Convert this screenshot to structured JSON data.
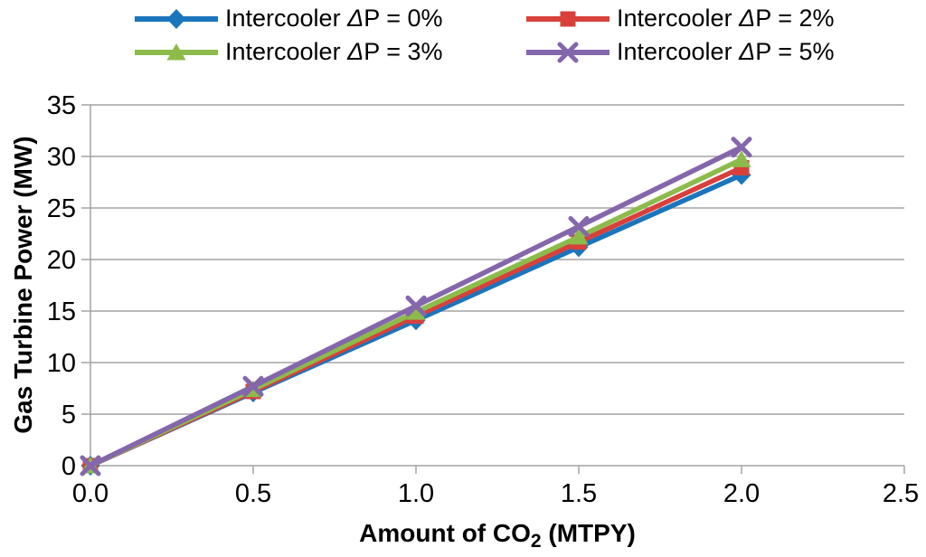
{
  "legend": {
    "items": [
      {
        "prefix": "Intercooler ",
        "delta": "Δ",
        "rest": "P = 0%",
        "marker": "diamond",
        "color": "#1B75BC"
      },
      {
        "prefix": "Intercooler ",
        "delta": "Δ",
        "rest": "P = 2%",
        "marker": "square",
        "color": "#D8403C"
      },
      {
        "prefix": "Intercooler ",
        "delta": "Δ",
        "rest": "P = 3%",
        "marker": "triangle",
        "color": "#8CBB4B"
      },
      {
        "prefix": "Intercooler ",
        "delta": "Δ",
        "rest": "P = 5%",
        "marker": "x",
        "color": "#8467AB"
      }
    ]
  },
  "chart_data": {
    "type": "line",
    "x": [
      0.0,
      0.5,
      1.0,
      1.5,
      2.0
    ],
    "series": [
      {
        "name": "Intercooler ΔP = 0%",
        "marker": "diamond",
        "color": "#1B75BC",
        "values": [
          0,
          7.1,
          14.1,
          21.2,
          28.2
        ]
      },
      {
        "name": "Intercooler ΔP = 2%",
        "marker": "square",
        "color": "#D8403C",
        "values": [
          0,
          7.2,
          14.5,
          21.7,
          28.9
        ]
      },
      {
        "name": "Intercooler ΔP = 3%",
        "marker": "triangle",
        "color": "#8CBB4B",
        "values": [
          0,
          7.4,
          14.9,
          22.2,
          29.7
        ]
      },
      {
        "name": "Intercooler ΔP = 5%",
        "marker": "x",
        "color": "#8467AB",
        "values": [
          0,
          7.7,
          15.5,
          23.2,
          30.9
        ]
      }
    ],
    "xlabel": {
      "pre": "Amount of CO",
      "sub": "2",
      "post": " (MTPY)"
    },
    "ylabel": "Gas Turbine Power (MW)",
    "xlim": [
      0.0,
      2.5
    ],
    "ylim": [
      0,
      35
    ],
    "xticks": [
      "0.0",
      "0.5",
      "1.0",
      "1.5",
      "2.0",
      "2.5"
    ],
    "yticks": [
      "0",
      "5",
      "10",
      "15",
      "20",
      "25",
      "30",
      "35"
    ],
    "grid": "horizontal",
    "legend_position": "top"
  },
  "colors": {
    "grid": "#A3A3A3",
    "axis": "#A3A3A3",
    "text": "#000000",
    "background": "#FFFFFF"
  }
}
